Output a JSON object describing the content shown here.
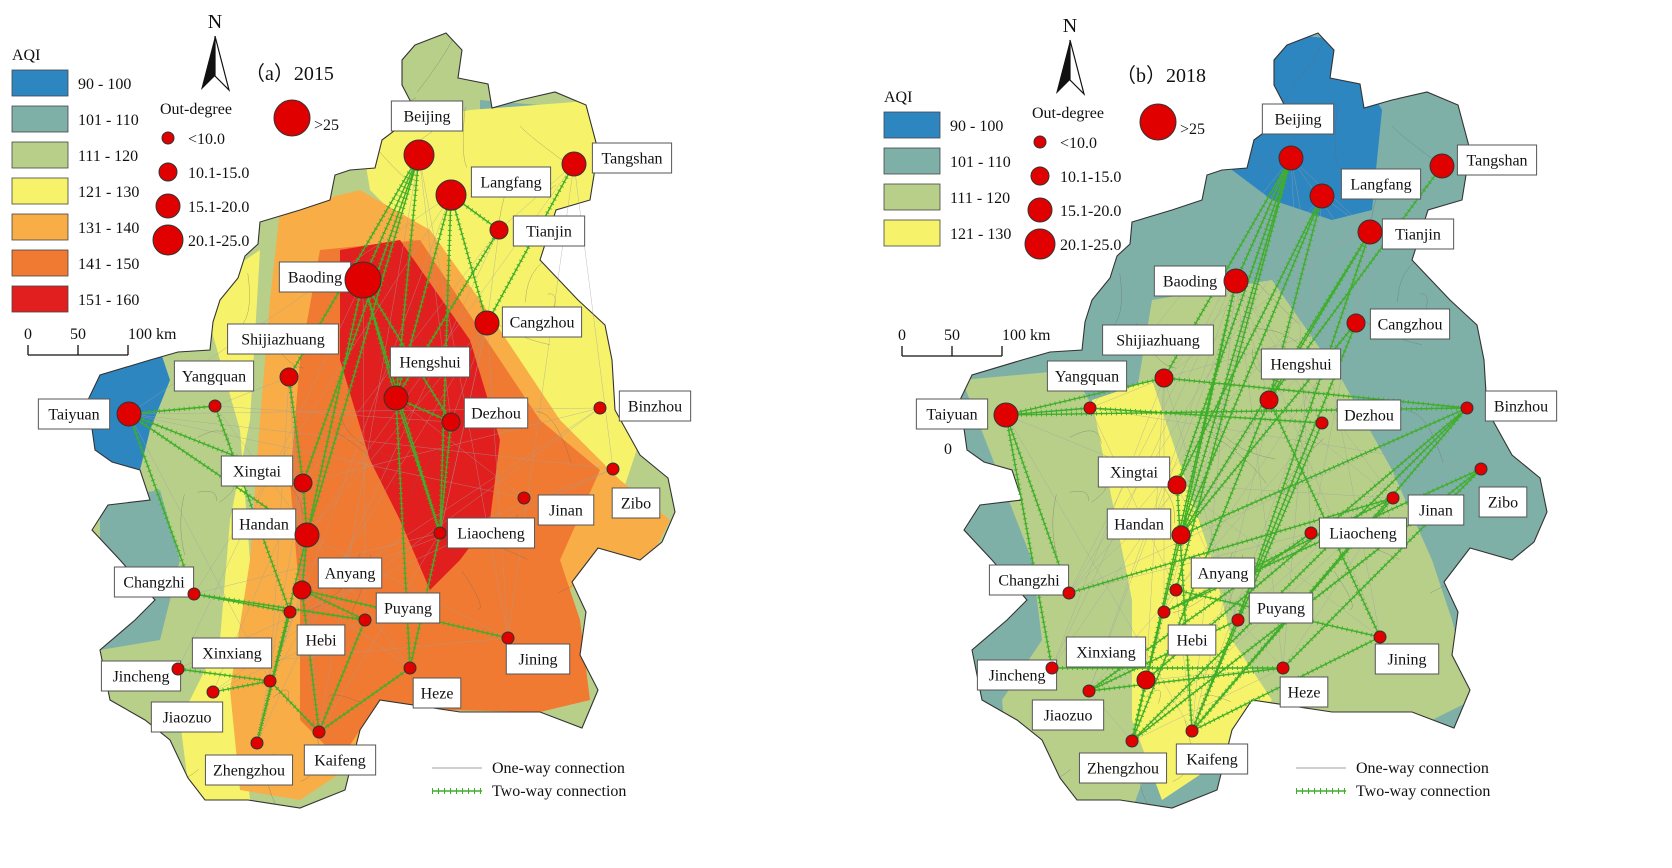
{
  "palette": {
    "aqi": [
      "#2e86c1",
      "#7fb0a8",
      "#b8cf8a",
      "#f6f36b",
      "#f8ad46",
      "#f07a32",
      "#e21f1f"
    ],
    "node_fill": "#e10000",
    "two_way_color": "#3fae2a",
    "one_way_color": "#a0a0a0",
    "boundary_color": "#333333"
  },
  "icons": {
    "north_arrow": "north-arrow-icon"
  },
  "legend_common": {
    "aqi_title": "AQI",
    "outdegree_title": "Out-degree",
    "outdegree_classes": [
      "<10.0",
      "10.1-15.0",
      "15.1-20.0",
      "20.1-25.0",
      ">25"
    ],
    "scalebar_ticks": [
      "0",
      "50",
      "100 km"
    ],
    "north_label": "N",
    "one_way_label": "One-way connection",
    "two_way_label": "Two-way connection"
  },
  "panels": [
    {
      "title": "（a）2015",
      "aqi_classes": [
        "90 - 100",
        "101 - 110",
        "111 - 120",
        "121 - 130",
        "131 - 140",
        "141 - 150",
        "151 - 160"
      ],
      "cities": [
        {
          "name": "Beijing",
          "outdegree_class": 3
        },
        {
          "name": "Langfang",
          "outdegree_class": 3
        },
        {
          "name": "Tangshan",
          "outdegree_class": 2
        },
        {
          "name": "Tianjin",
          "outdegree_class": 1
        },
        {
          "name": "Baoding",
          "outdegree_class": 4
        },
        {
          "name": "Cangzhou",
          "outdegree_class": 2
        },
        {
          "name": "Shijiazhuang",
          "outdegree_class": 1
        },
        {
          "name": "Hengshui",
          "outdegree_class": 2
        },
        {
          "name": "Yangquan",
          "outdegree_class": 0
        },
        {
          "name": "Taiyuan",
          "outdegree_class": 2
        },
        {
          "name": "Dezhou",
          "outdegree_class": 1
        },
        {
          "name": "Binzhou",
          "outdegree_class": 0
        },
        {
          "name": "Xingtai",
          "outdegree_class": 1
        },
        {
          "name": "Zibo",
          "outdegree_class": 0
        },
        {
          "name": "Jinan",
          "outdegree_class": 0
        },
        {
          "name": "Handan",
          "outdegree_class": 2
        },
        {
          "name": "Liaocheng",
          "outdegree_class": 0
        },
        {
          "name": "Changzhi",
          "outdegree_class": 0
        },
        {
          "name": "Anyang",
          "outdegree_class": 1
        },
        {
          "name": "Puyang",
          "outdegree_class": 0
        },
        {
          "name": "Hebi",
          "outdegree_class": 0
        },
        {
          "name": "Xinxiang",
          "outdegree_class": 0
        },
        {
          "name": "Jining",
          "outdegree_class": 0
        },
        {
          "name": "Jincheng",
          "outdegree_class": 0
        },
        {
          "name": "Heze",
          "outdegree_class": 0
        },
        {
          "name": "Jiaozuo",
          "outdegree_class": 0
        },
        {
          "name": "Zhengzhou",
          "outdegree_class": 0
        },
        {
          "name": "Kaifeng",
          "outdegree_class": 0
        }
      ]
    },
    {
      "title": "（b）2018",
      "aqi_classes": [
        "90 - 100",
        "101 - 110",
        "111 - 120",
        "121 - 130"
      ],
      "stray_label": "0",
      "cities": [
        {
          "name": "Beijing",
          "outdegree_class": 2
        },
        {
          "name": "Langfang",
          "outdegree_class": 2
        },
        {
          "name": "Tangshan",
          "outdegree_class": 2
        },
        {
          "name": "Tianjin",
          "outdegree_class": 2
        },
        {
          "name": "Baoding",
          "outdegree_class": 2
        },
        {
          "name": "Cangzhou",
          "outdegree_class": 1
        },
        {
          "name": "Shijiazhuang",
          "outdegree_class": 1
        },
        {
          "name": "Hengshui",
          "outdegree_class": 1
        },
        {
          "name": "Yangquan",
          "outdegree_class": 0
        },
        {
          "name": "Taiyuan",
          "outdegree_class": 2
        },
        {
          "name": "Dezhou",
          "outdegree_class": 0
        },
        {
          "name": "Binzhou",
          "outdegree_class": 0
        },
        {
          "name": "Xingtai",
          "outdegree_class": 1
        },
        {
          "name": "Zibo",
          "outdegree_class": 0
        },
        {
          "name": "Jinan",
          "outdegree_class": 0
        },
        {
          "name": "Handan",
          "outdegree_class": 1
        },
        {
          "name": "Liaocheng",
          "outdegree_class": 0
        },
        {
          "name": "Changzhi",
          "outdegree_class": 0
        },
        {
          "name": "Anyang",
          "outdegree_class": 0
        },
        {
          "name": "Puyang",
          "outdegree_class": 0
        },
        {
          "name": "Hebi",
          "outdegree_class": 0
        },
        {
          "name": "Xinxiang",
          "outdegree_class": 1
        },
        {
          "name": "Jining",
          "outdegree_class": 0
        },
        {
          "name": "Jincheng",
          "outdegree_class": 0
        },
        {
          "name": "Heze",
          "outdegree_class": 0
        },
        {
          "name": "Jiaozuo",
          "outdegree_class": 0
        },
        {
          "name": "Zhengzhou",
          "outdegree_class": 0
        },
        {
          "name": "Kaifeng",
          "outdegree_class": 0
        }
      ]
    }
  ]
}
